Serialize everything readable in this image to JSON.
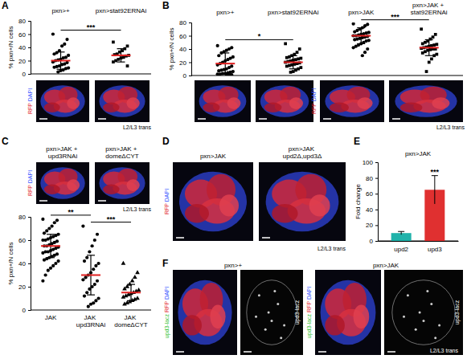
{
  "chart_data": [
    {
      "type": "dotplot",
      "categories": [
        "pxn>+",
        "pxn>stat92ERNAi"
      ],
      "y_label": "% pxn+/N cells",
      "ylim": [
        0,
        80
      ],
      "yticks": [
        0,
        20,
        40,
        60,
        80
      ],
      "color": "#000000",
      "groups": [
        {
          "marker": "circle",
          "mean": 20,
          "sd": 13,
          "values": [
            60,
            52,
            45,
            42,
            35,
            32,
            30,
            28,
            25,
            24,
            22,
            21,
            20,
            18,
            17,
            15,
            14,
            12,
            11,
            10,
            9,
            8,
            6,
            5,
            3
          ]
        },
        {
          "marker": "square",
          "mean": 28,
          "sd": 10,
          "values": [
            48,
            42,
            38,
            35,
            33,
            30,
            29,
            28,
            27,
            25,
            24,
            22,
            20,
            18,
            12
          ]
        }
      ],
      "annotations": [
        {
          "text": "***",
          "from": 0,
          "to": 1
        }
      ]
    },
    {
      "type": "dotplot",
      "categories": [
        "pxn>+",
        "pxn>stat92ERNAi",
        "pxn>JAK",
        "pxn>JAK + stat92ERNAi"
      ],
      "y_label": "% pxn+/N cells",
      "ylim": [
        0,
        80
      ],
      "yticks": [
        0,
        20,
        40,
        60,
        80
      ],
      "color": "#000000",
      "groups": [
        {
          "marker": "circle",
          "mean": 18,
          "sd": 16,
          "values": [
            45,
            42,
            40,
            38,
            36,
            34,
            30,
            28,
            26,
            24,
            22,
            20,
            18,
            16,
            14,
            12,
            10,
            9,
            8,
            7,
            6,
            5,
            4,
            3,
            3,
            2,
            2,
            1,
            1,
            0
          ]
        },
        {
          "marker": "square",
          "mean": 20,
          "sd": 10,
          "values": [
            48,
            40,
            35,
            32,
            30,
            28,
            27,
            26,
            25,
            24,
            23,
            22,
            21,
            20,
            19,
            18,
            17,
            16,
            15,
            14,
            12,
            10,
            8,
            6,
            5
          ]
        },
        {
          "marker": "circle",
          "mean": 60,
          "sd": 12,
          "values": [
            78,
            77,
            75,
            72,
            70,
            68,
            66,
            65,
            64,
            63,
            62,
            61,
            60,
            60,
            59,
            58,
            57,
            56,
            55,
            54,
            53,
            52,
            50,
            48,
            46,
            44,
            42,
            40,
            35,
            30
          ]
        },
        {
          "marker": "square",
          "mean": 42,
          "sd": 12,
          "values": [
            70,
            62,
            58,
            55,
            52,
            50,
            48,
            47,
            46,
            45,
            44,
            43,
            42,
            41,
            40,
            40,
            39,
            38,
            36,
            34,
            32,
            30,
            25,
            20,
            6
          ]
        }
      ],
      "annotations": [
        {
          "text": "*",
          "from": 0,
          "to": 1
        },
        {
          "text": "***",
          "from": 2,
          "to": 3
        }
      ]
    },
    {
      "type": "dotplot",
      "categories": [
        "JAK",
        "JAK upd3RNAi",
        "JAK domeΔCYT"
      ],
      "y_label": "% pxn+/N cells",
      "ylim": [
        0,
        80
      ],
      "yticks": [
        0,
        20,
        40,
        60,
        80
      ],
      "color": "#000000",
      "groups": [
        {
          "marker": "circle",
          "mean": 55,
          "sd": 10,
          "values": [
            78,
            77,
            75,
            72,
            70,
            68,
            66,
            65,
            64,
            63,
            62,
            61,
            60,
            60,
            59,
            58,
            57,
            56,
            55,
            55,
            54,
            53,
            52,
            51,
            50,
            50,
            49,
            48,
            47,
            46,
            45,
            44,
            43,
            42,
            40,
            38,
            36,
            34,
            30,
            25
          ]
        },
        {
          "marker": "circle",
          "mean": 30,
          "sd": 17,
          "values": [
            72,
            65,
            60,
            55,
            50,
            45,
            42,
            40,
            38,
            35,
            32,
            30,
            28,
            26,
            25,
            22,
            20,
            18,
            15,
            12,
            10,
            8,
            6,
            5,
            3
          ]
        },
        {
          "marker": "triangle",
          "mean": 15,
          "sd": 7,
          "values": [
            40,
            32,
            28,
            25,
            22,
            20,
            18,
            17,
            16,
            15,
            14,
            13,
            12,
            11,
            10,
            9,
            8,
            7,
            6,
            5
          ]
        }
      ],
      "annotations": [
        {
          "text": "**",
          "from": 0,
          "to": 1
        },
        {
          "text": "***",
          "from": 1,
          "to": 2
        }
      ]
    },
    {
      "type": "bar",
      "title": "pxn>JAK",
      "categories": [
        "upd2",
        "upd3"
      ],
      "values": [
        10,
        65
      ],
      "errors": [
        2,
        18
      ],
      "colors": [
        "#20b2aa",
        "#e03030"
      ],
      "y_label": "Fold change",
      "ylim": [
        0,
        100
      ],
      "yticks": [
        0,
        20,
        40,
        60,
        80,
        100
      ],
      "annotations": [
        {
          "text": "***",
          "category": 1
        }
      ]
    }
  ],
  "figure": {
    "panel_labels": [
      "A",
      "B",
      "C",
      "D",
      "E",
      "F"
    ],
    "micrographs": [
      {
        "channels": [
          "RFP",
          "DAPI"
        ],
        "colors": [
          "#e02020",
          "#3050ff"
        ],
        "stage": "L2/L3 trans"
      },
      {
        "channels": [
          "RFP",
          "DAPI"
        ],
        "colors": [
          "#e02020",
          "#3050ff"
        ],
        "stage": "L2/L3 trans"
      },
      {
        "titles": [
          "pxn>JAK + upd3RNAi",
          "pxn>JAK + domeΔCYT"
        ],
        "channels": [
          "RFP",
          "DAPI"
        ],
        "colors": [
          "#e02020",
          "#3050ff"
        ],
        "stage": "L2/L3 trans"
      },
      {
        "titles": [
          "pxn>JAK",
          "pxn>JAK upd2Δ,upd3Δ"
        ],
        "channels": [
          "RFP",
          "DAPI"
        ],
        "colors": [
          "#e02020",
          "#3050ff"
        ],
        "stage": "L2/L3 trans"
      },
      {
        "titles": [
          "pxn>+",
          "pxn>JAK"
        ],
        "channels": [
          "upd3-lacz",
          "RFP",
          "DAPI"
        ],
        "colors": [
          "#30c030",
          "#e02020",
          "#3050ff"
        ],
        "grey_label": "upd3-lacz",
        "stage": "L2/L3 trans"
      }
    ]
  }
}
